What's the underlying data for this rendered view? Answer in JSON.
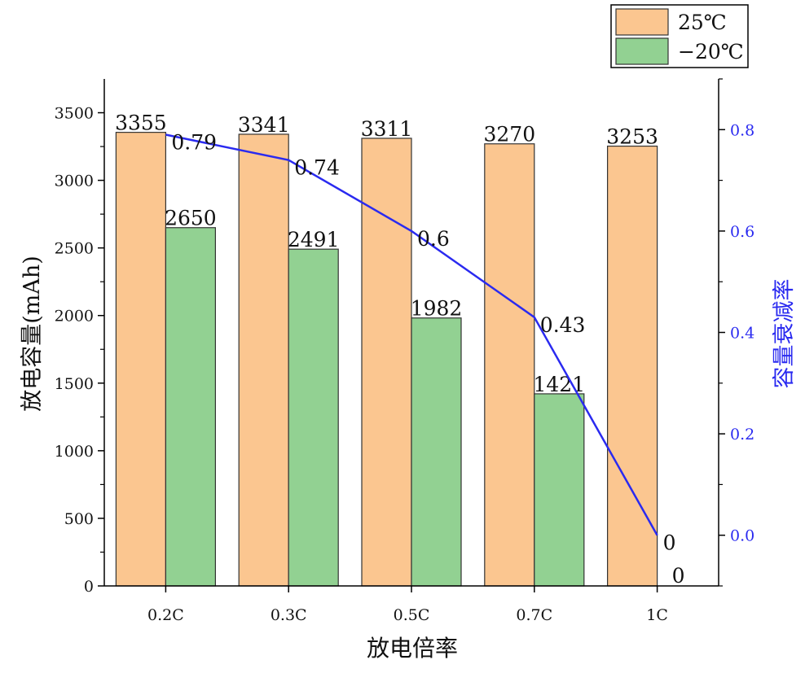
{
  "chart_data": {
    "type": "bar",
    "categories": [
      "0.2C",
      "0.3C",
      "0.5C",
      "0.7C",
      "1C"
    ],
    "xlabel": "放电倍率",
    "ylabel": "放电容量(mAh)",
    "y2label": "容量衰减率",
    "ylim": [
      0,
      3750
    ],
    "y2lim": [
      -0.1,
      0.9
    ],
    "yticks": [
      0,
      500,
      1000,
      1500,
      2000,
      2500,
      3000,
      3500
    ],
    "y2ticks": [
      "0.0",
      "0.2",
      "0.4",
      "0.6",
      "0.8"
    ],
    "series": [
      {
        "name": "25℃",
        "values": [
          3355,
          3341,
          3311,
          3270,
          3253
        ],
        "color": "#FBC690"
      },
      {
        "name": "−20℃",
        "values": [
          2650,
          2491,
          1982,
          1421,
          0
        ],
        "color": "#92D192"
      }
    ],
    "line_series": {
      "values": [
        0.79,
        0.74,
        0.6,
        0.43,
        0
      ],
      "labels": [
        "0.79",
        "0.74",
        "0.6",
        "0.43",
        "0"
      ],
      "color": "#2A2AF0",
      "axis": "right"
    },
    "legend_position": "top-right",
    "bar_outline_color": "#333333",
    "axis_color": "#000000",
    "right_axis_color": "#2A2AF0"
  }
}
